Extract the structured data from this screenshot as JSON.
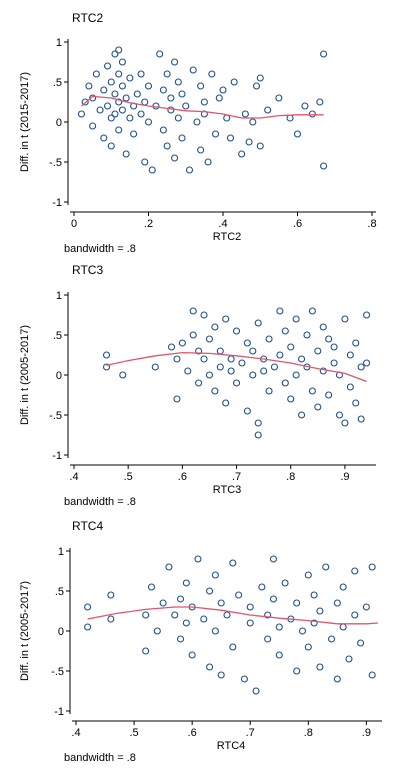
{
  "chart_data": [
    {
      "type": "scatter",
      "title": "RTC2",
      "xlabel": "RTC2",
      "ylabel": "Diff. in t (2015-2017)",
      "note": "bandwidth = .8",
      "xlim": [
        0,
        0.8
      ],
      "ylim": [
        -1,
        1
      ],
      "xticks": [
        0,
        0.2,
        0.4,
        0.6,
        0.8
      ],
      "xtick_labels": [
        "0",
        ".2",
        ".4",
        ".6",
        ".8"
      ],
      "yticks": [
        -1,
        -0.5,
        0,
        0.5,
        1
      ],
      "ytick_labels": [
        "-1",
        "-.5",
        "0",
        ".5",
        "1"
      ],
      "grid": false,
      "x": [
        0.02,
        0.03,
        0.04,
        0.05,
        0.05,
        0.06,
        0.07,
        0.08,
        0.08,
        0.09,
        0.09,
        0.1,
        0.1,
        0.1,
        0.11,
        0.11,
        0.11,
        0.12,
        0.12,
        0.12,
        0.12,
        0.13,
        0.13,
        0.13,
        0.14,
        0.14,
        0.15,
        0.15,
        0.16,
        0.16,
        0.17,
        0.18,
        0.18,
        0.19,
        0.19,
        0.2,
        0.2,
        0.21,
        0.22,
        0.23,
        0.24,
        0.24,
        0.25,
        0.25,
        0.26,
        0.26,
        0.27,
        0.27,
        0.28,
        0.28,
        0.29,
        0.29,
        0.3,
        0.31,
        0.32,
        0.33,
        0.34,
        0.34,
        0.35,
        0.35,
        0.36,
        0.37,
        0.38,
        0.39,
        0.4,
        0.41,
        0.42,
        0.43,
        0.45,
        0.46,
        0.47,
        0.48,
        0.49,
        0.5,
        0.5,
        0.52,
        0.55,
        0.58,
        0.6,
        0.62,
        0.64,
        0.66,
        0.67,
        0.67
      ],
      "y": [
        0.1,
        0.25,
        0.45,
        -0.05,
        0.3,
        0.6,
        0.15,
        0.4,
        -0.2,
        0.2,
        0.7,
        0.05,
        0.5,
        -0.3,
        0.85,
        0.35,
        0.1,
        0.6,
        0.25,
        0.9,
        -0.1,
        0.45,
        0.15,
        0.75,
        0.3,
        -0.4,
        0.55,
        0.05,
        0.2,
        -0.15,
        0.35,
        0.6,
        0.1,
        -0.5,
        0.25,
        0.0,
        0.45,
        -0.6,
        0.2,
        0.85,
        0.4,
        -0.1,
        0.6,
        -0.3,
        0.15,
        0.3,
        -0.45,
        0.75,
        0.05,
        0.5,
        -0.2,
        0.35,
        0.2,
        -0.6,
        0.65,
        0.0,
        0.45,
        -0.35,
        0.25,
        0.1,
        -0.5,
        0.6,
        -0.15,
        0.3,
        0.4,
        0.05,
        -0.2,
        0.5,
        -0.4,
        0.1,
        -0.25,
        0.0,
        0.45,
        0.55,
        -0.3,
        0.15,
        0.3,
        0.05,
        -0.15,
        0.2,
        0.1,
        0.25,
        0.85,
        -0.55
      ],
      "line": {
        "x": [
          0.02,
          0.05,
          0.1,
          0.15,
          0.2,
          0.25,
          0.3,
          0.35,
          0.4,
          0.45,
          0.5,
          0.55,
          0.6,
          0.67
        ],
        "y": [
          0.2,
          0.32,
          0.3,
          0.24,
          0.2,
          0.17,
          0.14,
          0.13,
          0.1,
          0.05,
          0.05,
          0.08,
          0.09,
          0.09
        ]
      }
    },
    {
      "type": "scatter",
      "title": "RTC3",
      "xlabel": "RTC3",
      "ylabel": "Diff. in t (2005-2017)",
      "note": "bandwidth = .8",
      "xlim": [
        0.4,
        0.95
      ],
      "ylim": [
        -1,
        1
      ],
      "xticks": [
        0.4,
        0.5,
        0.6,
        0.7,
        0.8,
        0.9
      ],
      "xtick_labels": [
        ".4",
        ".5",
        ".6",
        ".7",
        ".8",
        ".9"
      ],
      "yticks": [
        -1,
        -0.5,
        0,
        0.5,
        1
      ],
      "ytick_labels": [
        "-1",
        "-.5",
        "0",
        ".5",
        "1"
      ],
      "grid": false,
      "x": [
        0.46,
        0.46,
        0.49,
        0.55,
        0.58,
        0.59,
        0.59,
        0.6,
        0.61,
        0.62,
        0.62,
        0.63,
        0.63,
        0.64,
        0.64,
        0.65,
        0.65,
        0.66,
        0.66,
        0.67,
        0.67,
        0.68,
        0.68,
        0.69,
        0.69,
        0.7,
        0.7,
        0.71,
        0.72,
        0.72,
        0.73,
        0.73,
        0.74,
        0.74,
        0.74,
        0.75,
        0.75,
        0.76,
        0.76,
        0.77,
        0.78,
        0.78,
        0.79,
        0.79,
        0.8,
        0.8,
        0.81,
        0.81,
        0.82,
        0.82,
        0.83,
        0.83,
        0.84,
        0.84,
        0.85,
        0.85,
        0.86,
        0.86,
        0.87,
        0.87,
        0.88,
        0.88,
        0.89,
        0.89,
        0.9,
        0.9,
        0.91,
        0.91,
        0.92,
        0.92,
        0.93,
        0.93,
        0.94,
        0.94
      ],
      "y": [
        0.25,
        0.1,
        0.0,
        0.1,
        0.35,
        -0.3,
        0.2,
        0.4,
        0.05,
        0.8,
        0.5,
        0.3,
        -0.1,
        0.75,
        0.2,
        0.45,
        0.0,
        0.6,
        -0.2,
        0.3,
        0.1,
        0.7,
        -0.35,
        0.2,
        0.05,
        0.55,
        -0.1,
        0.15,
        0.4,
        -0.45,
        0.3,
        0.0,
        0.65,
        -0.6,
        -0.75,
        0.2,
        0.05,
        0.45,
        -0.2,
        0.1,
        0.8,
        0.25,
        -0.1,
        0.55,
        0.35,
        -0.3,
        0.7,
        0.0,
        0.2,
        -0.5,
        0.5,
        0.1,
        0.8,
        -0.2,
        0.3,
        -0.4,
        0.6,
        0.05,
        0.45,
        -0.25,
        0.15,
        0.35,
        -0.5,
        0.0,
        0.7,
        -0.6,
        0.25,
        -0.15,
        0.4,
        -0.35,
        0.1,
        -0.55,
        0.75,
        0.15
      ],
      "line": {
        "x": [
          0.46,
          0.5,
          0.55,
          0.6,
          0.65,
          0.7,
          0.75,
          0.8,
          0.85,
          0.9,
          0.94
        ],
        "y": [
          0.12,
          0.18,
          0.24,
          0.28,
          0.27,
          0.24,
          0.2,
          0.15,
          0.08,
          0.02,
          -0.08
        ]
      }
    },
    {
      "type": "scatter",
      "title": "RTC4",
      "xlabel": "RTC4",
      "ylabel": "Diff. in t (2005-2017)",
      "note": "bandwidth = .8",
      "xlim": [
        0.4,
        0.92
      ],
      "ylim": [
        -1,
        1
      ],
      "xticks": [
        0.4,
        0.5,
        0.6,
        0.7,
        0.8,
        0.9
      ],
      "xtick_labels": [
        ".4",
        ".5",
        ".6",
        ".7",
        ".8",
        ".9"
      ],
      "yticks": [
        -1,
        -0.5,
        0,
        0.5,
        1
      ],
      "ytick_labels": [
        "-1",
        "-.5",
        "0",
        ".5",
        "1"
      ],
      "grid": false,
      "x": [
        0.42,
        0.42,
        0.46,
        0.46,
        0.52,
        0.52,
        0.53,
        0.54,
        0.55,
        0.56,
        0.57,
        0.58,
        0.58,
        0.59,
        0.59,
        0.6,
        0.6,
        0.61,
        0.62,
        0.63,
        0.63,
        0.64,
        0.64,
        0.65,
        0.65,
        0.66,
        0.67,
        0.67,
        0.68,
        0.69,
        0.7,
        0.7,
        0.71,
        0.72,
        0.73,
        0.73,
        0.74,
        0.74,
        0.75,
        0.75,
        0.76,
        0.77,
        0.78,
        0.78,
        0.79,
        0.8,
        0.8,
        0.81,
        0.81,
        0.82,
        0.82,
        0.83,
        0.84,
        0.85,
        0.85,
        0.86,
        0.86,
        0.87,
        0.88,
        0.88,
        0.89,
        0.9,
        0.91,
        0.91
      ],
      "y": [
        0.3,
        0.05,
        0.45,
        0.15,
        0.2,
        -0.25,
        0.55,
        0.0,
        0.35,
        0.8,
        0.2,
        0.4,
        -0.1,
        0.6,
        0.1,
        0.3,
        -0.3,
        0.9,
        0.15,
        0.5,
        -0.45,
        0.7,
        0.0,
        0.35,
        -0.55,
        0.2,
        0.85,
        -0.2,
        0.45,
        -0.6,
        0.1,
        0.3,
        -0.75,
        0.55,
        0.2,
        -0.1,
        0.9,
        0.4,
        0.05,
        -0.3,
        0.6,
        0.15,
        -0.5,
        0.35,
        0.0,
        0.7,
        -0.2,
        0.45,
        0.1,
        -0.45,
        0.25,
        0.8,
        -0.1,
        0.35,
        -0.6,
        0.55,
        0.05,
        -0.35,
        0.2,
        0.75,
        -0.15,
        0.3,
        0.8,
        -0.55
      ],
      "line": {
        "x": [
          0.42,
          0.47,
          0.52,
          0.57,
          0.6,
          0.65,
          0.7,
          0.75,
          0.8,
          0.85,
          0.9,
          0.92
        ],
        "y": [
          0.15,
          0.22,
          0.27,
          0.3,
          0.3,
          0.26,
          0.2,
          0.16,
          0.13,
          0.09,
          0.09,
          0.1
        ]
      }
    }
  ]
}
